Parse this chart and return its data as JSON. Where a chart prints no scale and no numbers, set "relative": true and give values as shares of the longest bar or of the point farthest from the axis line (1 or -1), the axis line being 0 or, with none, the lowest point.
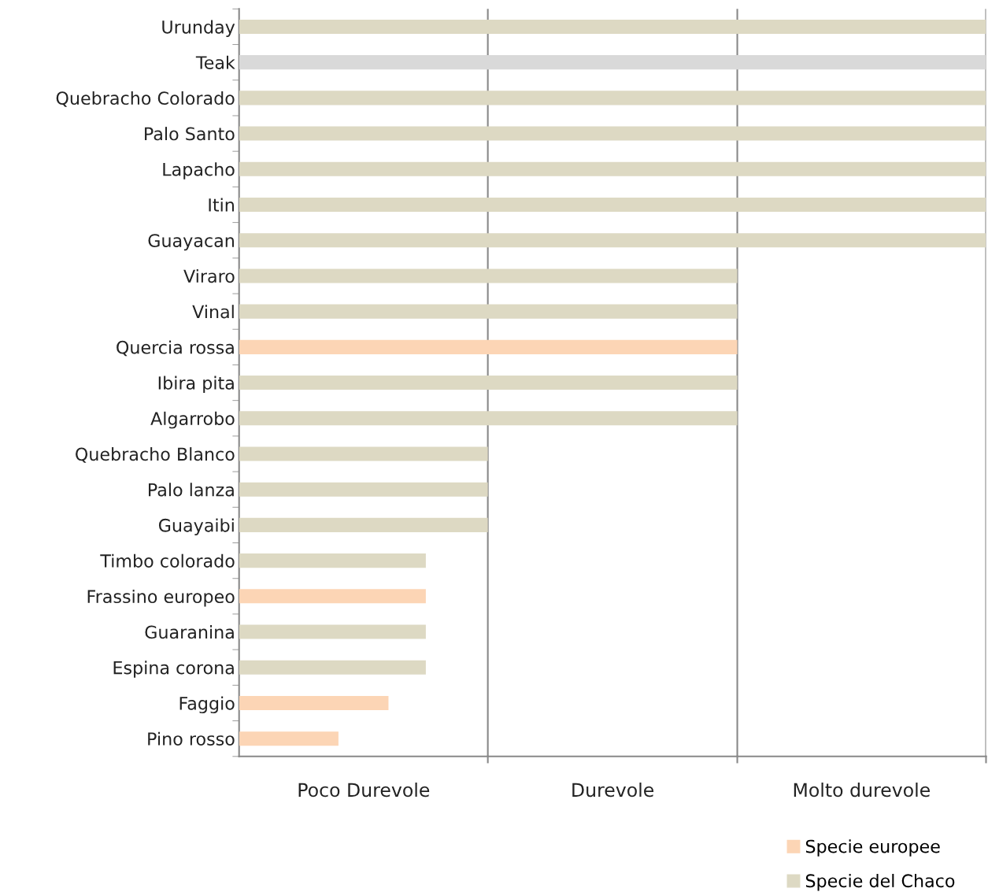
{
  "chart_data": {
    "type": "bar",
    "orientation": "horizontal",
    "relative": true,
    "categories": [
      "Urunday",
      "Teak",
      "Quebracho Colorado",
      "Palo Santo",
      "Lapacho",
      "Itin",
      "Guayacan",
      "Viraro",
      "Vinal",
      "Quercia rossa",
      "Ibira pita",
      "Algarrobo",
      "Quebracho Blanco",
      "Palo lanza",
      "Guayaibi",
      "Timbo colorado",
      "Frassino europeo",
      "Guaranina",
      "Espina corona",
      "Faggio",
      "Pino rosso"
    ],
    "series": [
      {
        "name": "Specie europee",
        "color": "#fcd5b5",
        "values": [
          null,
          null,
          null,
          null,
          null,
          null,
          null,
          null,
          null,
          0.667,
          null,
          null,
          null,
          null,
          null,
          null,
          0.25,
          null,
          null,
          0.2,
          0.133
        ]
      },
      {
        "name": "Specie del Chaco",
        "color": "#ddd9c3",
        "values": [
          1,
          null,
          1,
          1,
          1,
          1,
          1,
          0.667,
          0.667,
          null,
          0.667,
          0.667,
          0.333,
          0.333,
          0.333,
          0.25,
          null,
          0.25,
          0.25,
          null,
          null
        ]
      },
      {
        "color": "#d9d9d9",
        "values": [
          null,
          1,
          null,
          null,
          null,
          null,
          null,
          null,
          null,
          null,
          null,
          null,
          null,
          null,
          null,
          null,
          null,
          null,
          null,
          null,
          null
        ]
      }
    ],
    "annotations": [
      "Poco Durevole",
      "Durevole",
      "Molto durevole"
    ],
    "ref_lines": [
      {
        "axis": "x",
        "value": 0.333,
        "color": "#888888"
      },
      {
        "axis": "x",
        "value": 0.667,
        "color": "#888888"
      },
      {
        "axis": "x",
        "value": 1,
        "color": "#888888"
      }
    ],
    "legend": "bottom right"
  }
}
